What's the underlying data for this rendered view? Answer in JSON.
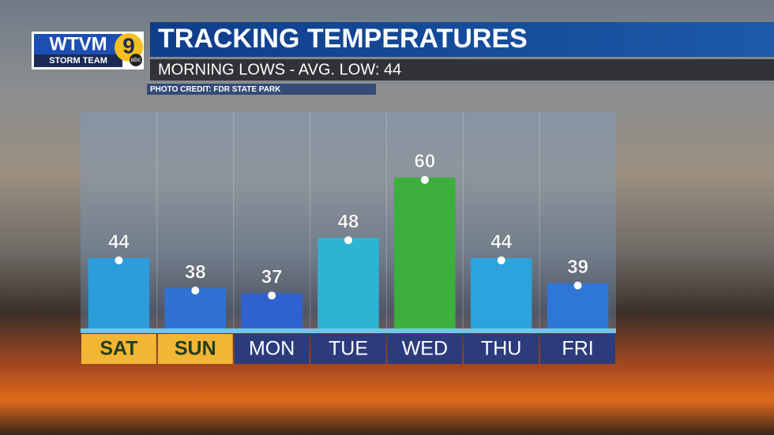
{
  "logo": {
    "station": "WTVM",
    "team": "STORM TEAM",
    "channel": "9",
    "network": "abc"
  },
  "photo_credit": "PHOTO CREDIT: FDR STATE PARK",
  "chart_data": {
    "type": "bar",
    "title": "TRACKING TEMPERATURES",
    "subtitle": "MORNING LOWS - AVG. LOW: 44",
    "categories": [
      "SAT",
      "SUN",
      "MON",
      "TUE",
      "WED",
      "THU",
      "FRI"
    ],
    "values": [
      44,
      38,
      37,
      48,
      60,
      44,
      39
    ],
    "colors": [
      "#2c9ddb",
      "#2f72d3",
      "#2f62cf",
      "#2fb3d3",
      "#3caf3c",
      "#2ca3de",
      "#2f77d6"
    ],
    "label_backgrounds": [
      "#f2b534",
      "#f2b534",
      "#2b3b7c",
      "#2b3b7c",
      "#2b3b7c",
      "#2b3b7c",
      "#2b3b7c"
    ],
    "label_text_colors": [
      "#1f3d1f",
      "#1f3d1f",
      "#ffffff",
      "#ffffff",
      "#ffffff",
      "#ffffff",
      "#ffffff"
    ],
    "ylim": [
      30,
      73
    ]
  }
}
